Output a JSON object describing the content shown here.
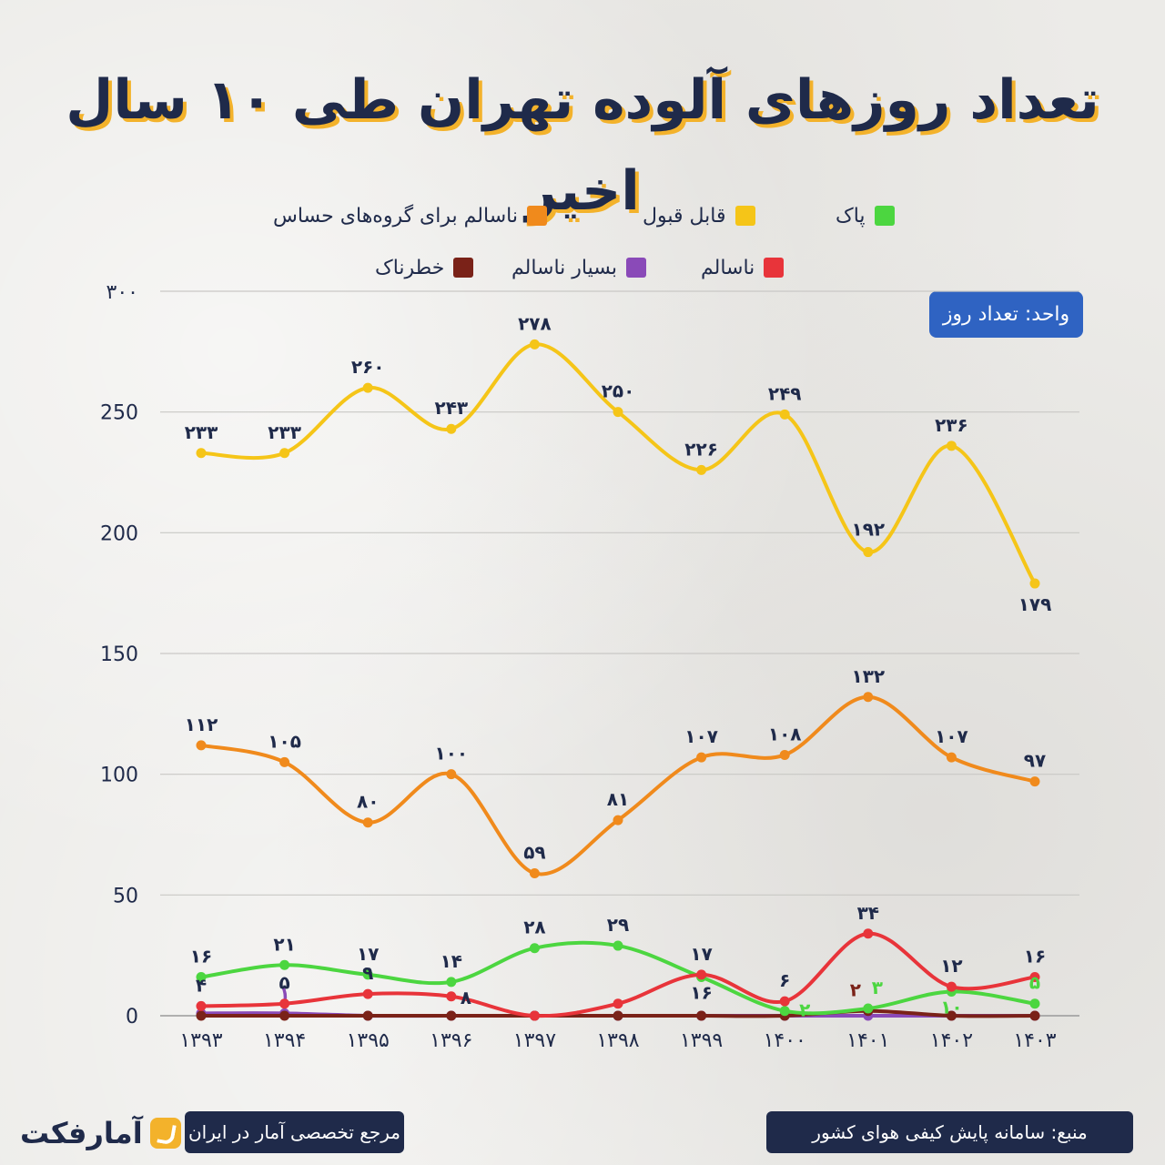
{
  "title": "تعداد روزهای آلوده تهران طی ۱۰ سال اخیر",
  "unit_label": "واحد: تعداد روز",
  "footer": {
    "source": "منبع: سامانه پایش کیفی هوای کشور",
    "tagline": "مرجع تخصصی آمار در ایران",
    "logo_text": "آمارفکت"
  },
  "legend": [
    {
      "label": "پاک",
      "color": "#4cd640"
    },
    {
      "label": "قابل قبول",
      "color": "#f5c518"
    },
    {
      "label": "ناسالم برای گروه‌های حساس",
      "color": "#f08a1c"
    },
    {
      "label": "ناسالم",
      "color": "#e8343a"
    },
    {
      "label": "بسیار ناسالم",
      "color": "#8a4ab8"
    },
    {
      "label": "خطرناک",
      "color": "#7a2218"
    }
  ],
  "chart_data": {
    "type": "line",
    "categories": [
      "۱۳۹۳",
      "۱۳۹۴",
      "۱۳۹۵",
      "۱۳۹۶",
      "۱۳۹۷",
      "۱۳۹۸",
      "۱۳۹۹",
      "۱۴۰۰",
      "۱۴۰۱",
      "۱۴۰۲",
      "۱۴۰۳"
    ],
    "ylim": [
      0,
      300
    ],
    "yticks": [
      0,
      50,
      100,
      150,
      200,
      250,
      300
    ],
    "ytick_labels": [
      "0",
      "50",
      "100",
      "150",
      "200",
      "250",
      "۳۰۰"
    ],
    "grid": true,
    "legend_position": "top",
    "series": [
      {
        "name": "قابل قبول",
        "color": "#f5c518",
        "label_color": "#1f2a4a",
        "label_pos": "above",
        "values": [
          233,
          233,
          260,
          243,
          278,
          250,
          226,
          249,
          192,
          236,
          179
        ],
        "labels": [
          "۲۳۳",
          "۲۳۳",
          "۲۶۰",
          "۲۴۳",
          "۲۷۸",
          "۲۵۰",
          "۲۲۶",
          "۲۴۹",
          "۱۹۲",
          "۲۳۶",
          "۱۷۹"
        ]
      },
      {
        "name": "ناسالم برای گروه‌های حساس",
        "color": "#f08a1c",
        "label_color": "#1f2a4a",
        "label_pos": "above",
        "values": [
          112,
          105,
          80,
          100,
          59,
          81,
          107,
          108,
          132,
          107,
          97
        ],
        "labels": [
          "۱۱۲",
          "۱۰۵",
          "۸۰",
          "۱۰۰",
          "۵۹",
          "۸۱",
          "۱۰۷",
          "۱۰۸",
          "۱۳۲",
          "۱۰۷",
          "۹۷"
        ]
      },
      {
        "name": "پاک",
        "color": "#4cd640",
        "label_color": "#1f2a4a",
        "label_pos": "above",
        "values": [
          16,
          21,
          17,
          14,
          28,
          29,
          16,
          2,
          3,
          10,
          5
        ],
        "labels": [
          "۱۶",
          "۲۱",
          "۱۷",
          "۱۴",
          "۲۸",
          "۲۹",
          "۱۶",
          "۲",
          "۳",
          "۱۰",
          "۵"
        ]
      },
      {
        "name": "ناسالم",
        "color": "#e8343a",
        "label_color": "#1f2a4a",
        "label_pos": "above",
        "values": [
          4,
          5,
          9,
          8,
          0,
          5,
          17,
          6,
          34,
          12,
          16
        ],
        "labels": [
          "۴",
          "۵",
          "۹",
          "۸",
          "",
          "",
          "۱۷",
          "۶",
          "۳۴",
          "۱۲",
          "۱۶"
        ]
      },
      {
        "name": "بسیار ناسالم",
        "color": "#8a4ab8",
        "label_color": "#8a4ab8",
        "label_pos": "above",
        "values": [
          1,
          1,
          0,
          0,
          0,
          0,
          0,
          0,
          0,
          0,
          0
        ],
        "labels": [
          "",
          "۱",
          "",
          "",
          "",
          "",
          "",
          "",
          "",
          "",
          ""
        ]
      },
      {
        "name": "خطرناک",
        "color": "#7a2218",
        "label_color": "#7a2218",
        "label_pos": "above",
        "values": [
          0,
          0,
          0,
          0,
          0,
          0,
          0,
          0,
          2,
          0,
          0
        ],
        "labels": [
          "",
          "",
          "",
          "",
          "",
          "",
          "",
          "",
          "۲",
          "",
          ""
        ]
      }
    ]
  }
}
